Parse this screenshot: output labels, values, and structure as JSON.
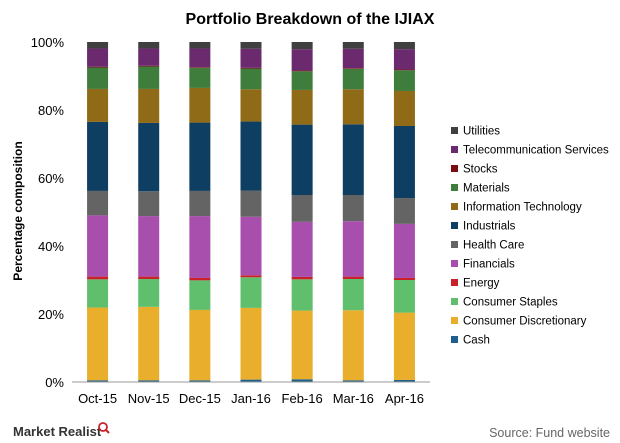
{
  "chart_data": {
    "type": "bar",
    "stacked": true,
    "title": "Portfolio Breakdown of the IJIAX",
    "ylabel": "Percentage composition",
    "xlabel": "",
    "ylim": [
      0,
      100
    ],
    "y_ticks": [
      "0%",
      "20%",
      "40%",
      "60%",
      "80%",
      "100%"
    ],
    "categories": [
      "Oct-15",
      "Nov-15",
      "Dec-15",
      "Jan-16",
      "Feb-16",
      "Mar-16",
      "Apr-16"
    ],
    "legend_position": "right",
    "grid": false,
    "series": [
      {
        "name": "Cash",
        "color": "#1f5f8b",
        "values": [
          0.5,
          0.5,
          0.5,
          0.7,
          0.8,
          0.5,
          0.6
        ]
      },
      {
        "name": "Consumer Discretionary",
        "color": "#e8ae2c",
        "values": [
          21.4,
          21.6,
          20.7,
          21.1,
          20.2,
          20.6,
          19.8
        ]
      },
      {
        "name": "Consumer Staples",
        "color": "#5fbf6c",
        "values": [
          8.3,
          8.2,
          8.7,
          9.0,
          9.2,
          9.2,
          9.6
        ]
      },
      {
        "name": "Energy",
        "color": "#c8212a",
        "values": [
          0.8,
          0.7,
          0.7,
          0.6,
          0.7,
          0.7,
          0.6
        ]
      },
      {
        "name": "Financials",
        "color": "#a84fae",
        "values": [
          18.0,
          17.8,
          18.2,
          17.2,
          16.2,
          16.3,
          15.9
        ]
      },
      {
        "name": "Health Care",
        "color": "#646464",
        "values": [
          7.2,
          7.3,
          7.4,
          7.7,
          7.9,
          7.7,
          7.6
        ]
      },
      {
        "name": "Industrials",
        "color": "#0e3f63",
        "values": [
          20.3,
          20.1,
          20.1,
          20.3,
          20.7,
          20.8,
          21.2
        ]
      },
      {
        "name": "Information Technology",
        "color": "#8f6a17",
        "values": [
          9.7,
          10.0,
          10.2,
          9.5,
          10.2,
          10.3,
          10.3
        ]
      },
      {
        "name": "Materials",
        "color": "#3e7d3c",
        "values": [
          6.3,
          6.6,
          5.9,
          6.1,
          5.5,
          6.0,
          6.1
        ]
      },
      {
        "name": "Stocks",
        "color": "#7a0d14",
        "values": [
          0.2,
          0.2,
          0.2,
          0.2,
          0.2,
          0.2,
          0.2
        ]
      },
      {
        "name": "Telecommunication Services",
        "color": "#6b2a6e",
        "values": [
          5.4,
          5.1,
          5.5,
          5.6,
          6.3,
          5.7,
          6.0
        ]
      },
      {
        "name": "Utilities",
        "color": "#404040",
        "values": [
          1.9,
          1.9,
          1.9,
          2.0,
          2.1,
          2.0,
          2.1
        ]
      }
    ]
  },
  "footer": {
    "brand": "Market Realist",
    "source": "Source: Fund website"
  }
}
